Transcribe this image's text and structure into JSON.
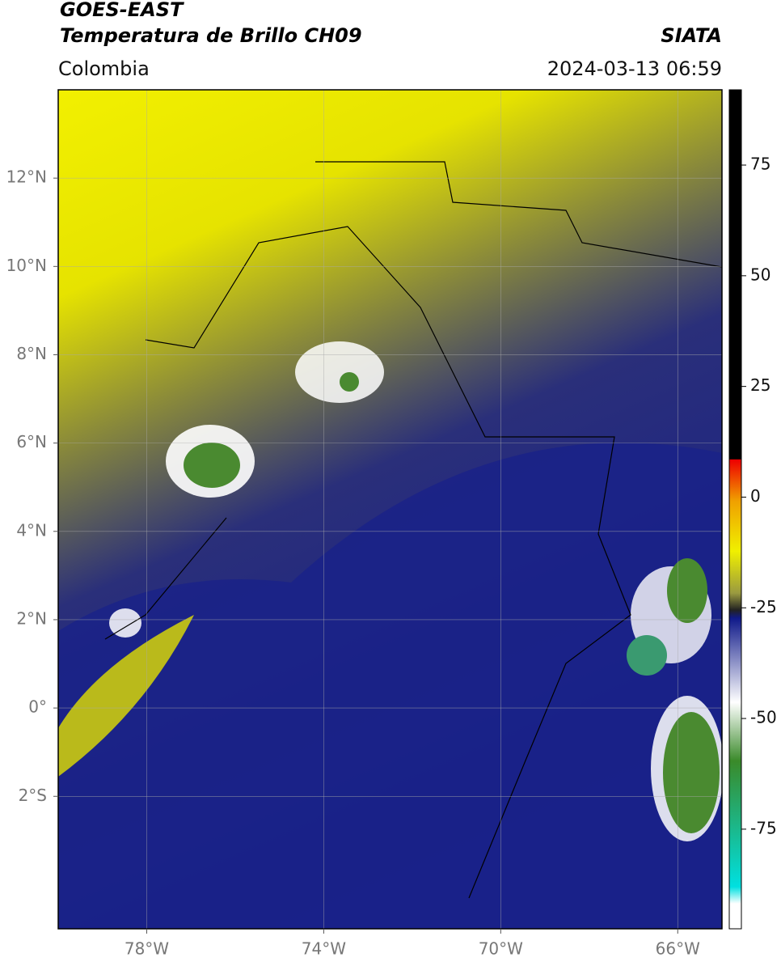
{
  "header": {
    "satellite": "GOES-EAST",
    "product": "Temperatura de Brillo CH09",
    "source": "SIATA",
    "region": "Colombia",
    "datetime": "2024-03-13 06:59"
  },
  "map": {
    "xlim": [
      -80,
      -65
    ],
    "ylim": [
      -5,
      14
    ],
    "xticks": [
      {
        "value": -78,
        "label": "78°W"
      },
      {
        "value": -74,
        "label": "74°W"
      },
      {
        "value": -70,
        "label": "70°W"
      },
      {
        "value": -66,
        "label": "66°W"
      }
    ],
    "yticks": [
      {
        "value": 12,
        "label": "12°N"
      },
      {
        "value": 10,
        "label": "10°N"
      },
      {
        "value": 8,
        "label": "8°N"
      },
      {
        "value": 6,
        "label": "6°N"
      },
      {
        "value": 4,
        "label": "4°N"
      },
      {
        "value": 2,
        "label": "2°N"
      },
      {
        "value": 0,
        "label": "0°"
      },
      {
        "value": -2,
        "label": "2°S"
      }
    ],
    "grid": true
  },
  "colorbar": {
    "lim": [
      -97.5,
      92
    ],
    "ticks": [
      75,
      50,
      25,
      0,
      -25,
      -50,
      -75
    ]
  }
}
